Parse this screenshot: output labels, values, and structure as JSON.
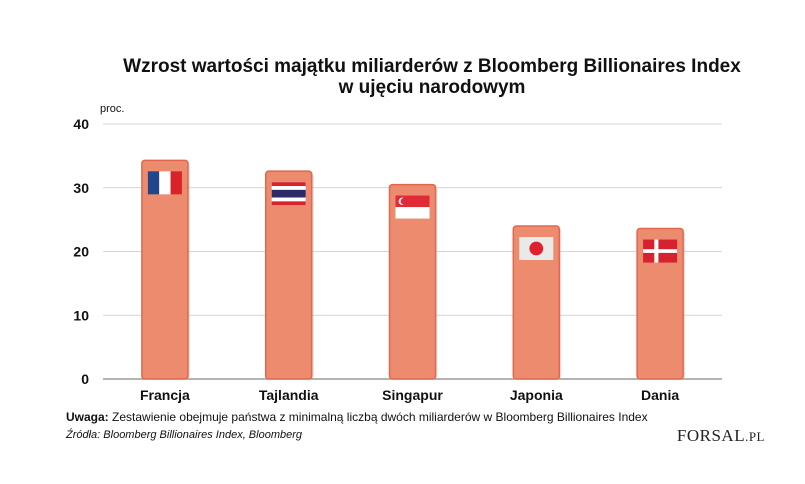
{
  "chart_data": {
    "type": "bar",
    "title_line1": "Wzrost wartości majątku miliarderów z Bloomberg Billionaires Index",
    "title_line2": "w ujęciu narodowym",
    "ylabel": "proc.",
    "xlabel": "",
    "ylim": [
      0,
      40
    ],
    "yticks": [
      "0",
      "10",
      "20",
      "30",
      "40"
    ],
    "ytick_values": [
      0,
      10,
      20,
      30,
      40
    ],
    "grid": true,
    "categories": [
      "Francja",
      "Tajlandia",
      "Singapur",
      "Japonia",
      "Dania"
    ],
    "values": [
      34.3,
      32.6,
      30.5,
      24.0,
      23.6
    ],
    "flags": [
      "france-flag-icon",
      "thailand-flag-icon",
      "singapore-flag-icon",
      "japan-flag-icon",
      "denmark-flag-icon"
    ],
    "colors": {
      "bar": "#ec8b6e",
      "bar_edge": "#e1674d",
      "grid": "#c8c8c8",
      "axis": "#888888"
    }
  },
  "footer": {
    "note_label": "Uwaga:",
    "note_text": "Zestawienie obejmuje państwa z minimalną liczbą dwóch miliarderów w Bloomberg Billionaires Index",
    "source": "Źródła: Bloomberg Billionaires Index, Bloomberg",
    "logo": "FORSAL",
    "logo_suffix": ".PL"
  }
}
